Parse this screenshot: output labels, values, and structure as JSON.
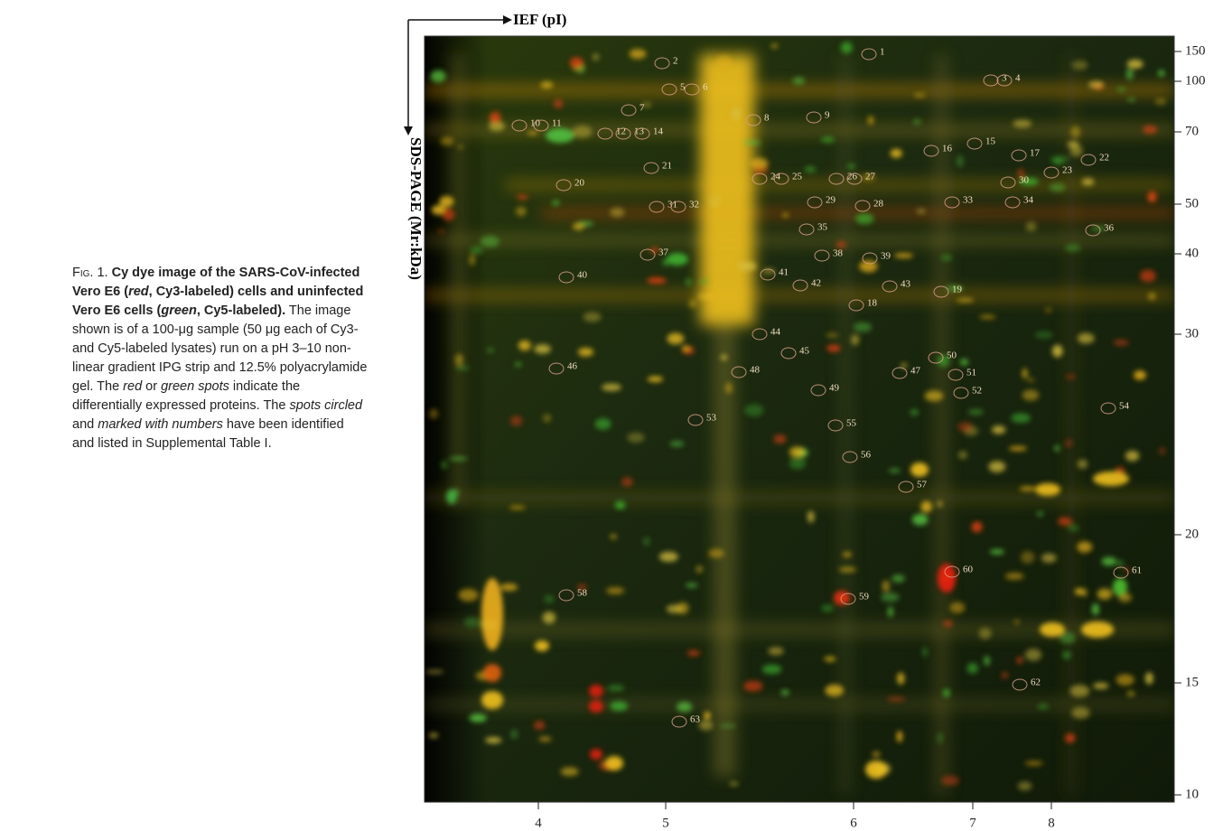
{
  "caption": [
    "Fig. 1.",
    "Cy dye image of the SARS-CoV-infected Vero E6 (",
    "red",
    ", Cy3-labeled) cells and uninfected Vero E6 cells (",
    "green",
    ", Cy5-labeled).",
    " The image shown is of a 100-μg sample (50 μg each of Cy3- and Cy5-labeled lysates) run on a pH 3–10 non-linear gradient IPG strip and 12.5% polyacrylamide gel. The ",
    "red",
    " or ",
    "green spots",
    " indicate the differentially expressed proteins. The ",
    "spots circled",
    " and ",
    "marked with numbers",
    " have been identified and listed in Supplemental Table I."
  ],
  "axes": {
    "x_label": "IEF (pI)",
    "y_label": "SDS-PAGE (Mr:kDa)",
    "mw_ticks": [
      "150",
      "100",
      "70",
      "50",
      "40",
      "30",
      "20",
      "15",
      "10"
    ],
    "pi_ticks": [
      "4",
      "5",
      "6",
      "7",
      "8"
    ]
  },
  "spots": [
    "1",
    "2",
    "3",
    "4",
    "5",
    "6",
    "7",
    "8",
    "9",
    "10",
    "11",
    "12",
    "13",
    "14",
    "15",
    "16",
    "17",
    "18",
    "19",
    "20",
    "21",
    "22",
    "23",
    "24",
    "25",
    "26",
    "27",
    "28",
    "29",
    "30",
    "31",
    "32",
    "33",
    "34",
    "35",
    "36",
    "37",
    "38",
    "39",
    "40",
    "41",
    "42",
    "43",
    "44",
    "45",
    "46",
    "47",
    "48",
    "49",
    "50",
    "51",
    "52",
    "53",
    "54",
    "55",
    "56",
    "57",
    "58",
    "59",
    "60",
    "61",
    "62",
    "63"
  ]
}
